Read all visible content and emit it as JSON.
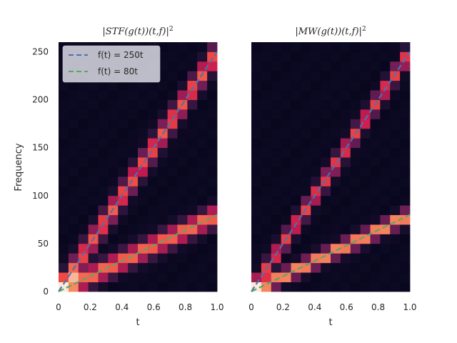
{
  "chart_data": [
    {
      "type": "heatmap",
      "title": "|STF(g(t))(t,f)|²",
      "title_parts": {
        "prefix": "|",
        "op": "STF",
        "args": "(g(t))(t,f)|",
        "sup": "2"
      },
      "xlabel": "t",
      "ylabel": "Frequency",
      "xlim": [
        0.0,
        1.0
      ],
      "ylim": [
        0,
        260
      ],
      "x_ticks": [
        "0",
        "0.2",
        "0.4",
        "0.6",
        "0.8",
        "1.0"
      ],
      "y_ticks": [
        "0",
        "50",
        "100",
        "150",
        "200",
        "250"
      ],
      "colormap": "rocket",
      "grid": false,
      "legend_position": "upper-left",
      "series": [
        {
          "name": "f(t) = 250t",
          "style": "dashed",
          "color": "#4c72b0",
          "x": [
            0.0,
            1.0
          ],
          "y": [
            0,
            250
          ]
        },
        {
          "name": "f(t) = 80t",
          "style": "dashed",
          "color": "#55a868",
          "x": [
            0.0,
            1.0
          ],
          "y": [
            0,
            80
          ]
        }
      ],
      "ridges": [
        {
          "slope": 250,
          "width": 9,
          "peak": 0.72
        },
        {
          "slope": 80,
          "width": 7,
          "peak": 0.78
        }
      ]
    },
    {
      "type": "heatmap",
      "title": "|MW(g(t))(t,f)|²",
      "title_parts": {
        "prefix": "|",
        "op": "MW",
        "args": "(g(t))(t,f)|",
        "sup": "2"
      },
      "xlabel": "t",
      "ylabel": "",
      "xlim": [
        0.0,
        1.0
      ],
      "ylim": [
        0,
        260
      ],
      "x_ticks": [
        "0",
        "0.2",
        "0.4",
        "0.6",
        "0.8",
        "1.0"
      ],
      "y_ticks": [],
      "colormap": "rocket",
      "grid": false,
      "series": [
        {
          "name": "f(t) = 250t",
          "style": "dashed",
          "color": "#4c72b0",
          "x": [
            0.0,
            1.0
          ],
          "y": [
            0,
            250
          ]
        },
        {
          "name": "f(t) = 80t",
          "style": "dashed",
          "color": "#55a868",
          "x": [
            0.0,
            1.0
          ],
          "y": [
            0,
            80
          ]
        }
      ],
      "ridges": [
        {
          "slope": 250,
          "width": 7,
          "peak": 0.66
        },
        {
          "slope": 80,
          "width": 5,
          "peak": 0.9
        }
      ]
    }
  ]
}
